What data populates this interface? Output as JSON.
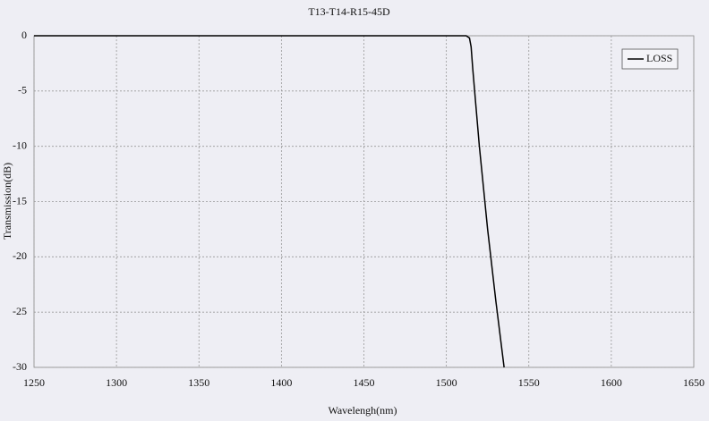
{
  "chart_data": {
    "type": "line",
    "title": "T13-T14-R15-45D",
    "xlabel": "Wavelengh(nm)",
    "ylabel": "Transmission(dB)",
    "x": [
      1250,
      1300,
      1400,
      1500,
      1512,
      1514,
      1515,
      1516,
      1518,
      1520,
      1525,
      1530,
      1535
    ],
    "series": [
      {
        "name": "LOSS",
        "color": "#000000",
        "values": [
          0,
          0,
          0,
          0,
          0,
          -0.2,
          -1,
          -3,
          -6.5,
          -10,
          -17.5,
          -24,
          -30
        ]
      }
    ],
    "xlim": [
      1250,
      1650
    ],
    "xticks": [
      1250,
      1300,
      1350,
      1400,
      1450,
      1500,
      1550,
      1600,
      1650
    ],
    "ylim": [
      -30,
      0
    ],
    "yticks": [
      0,
      -5,
      -10,
      -15,
      -20,
      -25,
      -30
    ],
    "grid": true,
    "legend": "upper-right"
  }
}
